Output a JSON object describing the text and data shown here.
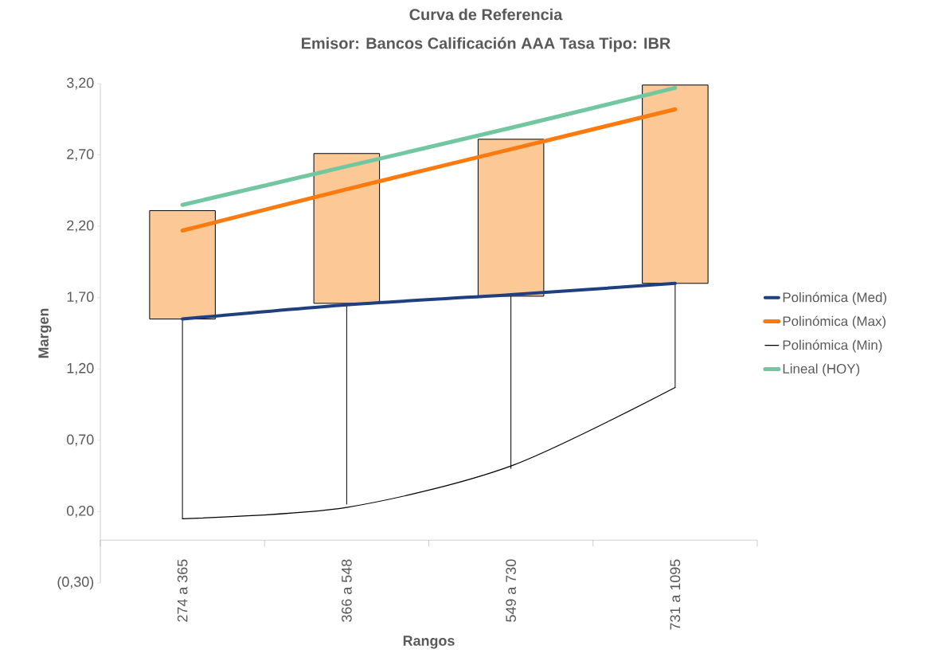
{
  "chart_data": {
    "type": "candlestick",
    "title": "Curva de Referencia",
    "subtitle": "Emisor: Bancos   Calificación AAA   Tasa Tipo: IBR",
    "xlabel": "Rangos",
    "ylabel": "Margen",
    "categories": [
      "274  a 365",
      "366  a 548",
      "549  a 730",
      "731  a 1095"
    ],
    "ohlc": [
      [
        1.55,
        2.31,
        0.15,
        2.31
      ],
      [
        1.66,
        2.71,
        0.25,
        2.71
      ],
      [
        1.71,
        2.81,
        0.5,
        2.81
      ],
      [
        1.8,
        3.19,
        1.07,
        3.19
      ]
    ],
    "color": "#fcc896",
    "series": [
      {
        "name": "Polinómica (Med)",
        "type": "line",
        "color": "#1f3f80",
        "values": [
          1.55,
          1.65,
          1.72,
          1.8
        ]
      },
      {
        "name": "Polinómica (Max)",
        "type": "line",
        "color": "#fd7a0e",
        "values": [
          2.17,
          2.46,
          2.74,
          3.02
        ]
      },
      {
        "name": "Polinómica (Min)",
        "type": "line",
        "color": "#000000",
        "values": [
          0.15,
          0.23,
          0.52,
          1.07
        ]
      },
      {
        "name": "Lineal (HOY)",
        "type": "line",
        "color": "#72c7a0",
        "values": [
          2.35,
          2.62,
          2.89,
          3.17
        ]
      }
    ],
    "ylim": [
      -0.3,
      3.2
    ],
    "yticks": [
      {
        "value": -0.3,
        "label": "(0,30)"
      },
      {
        "value": 0.2,
        "label": "0,20"
      },
      {
        "value": 0.7,
        "label": "0,70"
      },
      {
        "value": 1.2,
        "label": "1,20"
      },
      {
        "value": 1.7,
        "label": "1,70"
      },
      {
        "value": 2.2,
        "label": "2,20"
      },
      {
        "value": 2.7,
        "label": "2,70"
      },
      {
        "value": 3.2,
        "label": "3,20"
      }
    ],
    "legend": "right"
  }
}
